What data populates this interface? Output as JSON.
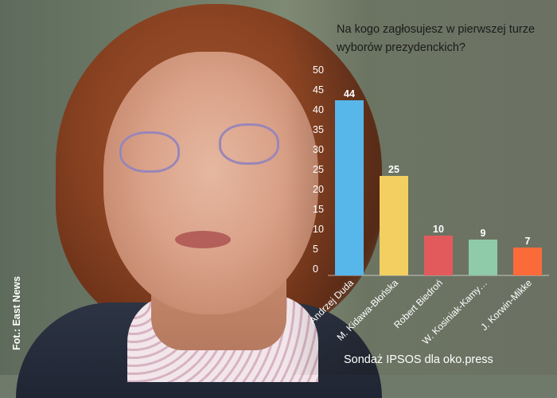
{
  "chart_data": {
    "type": "bar",
    "title": "Na kogo zagłosujesz w pierwszej turze wyborów prezydenckich?",
    "categories": [
      "Andrzej Duda",
      "M. Kidawa-Błońska",
      "Robert Biedroń",
      "W. Kosiniak-Kamy…",
      "J. Korwin-Mikke"
    ],
    "values": [
      44,
      25,
      10,
      9,
      7
    ],
    "colors": [
      "#57b7ea",
      "#f2cf60",
      "#e35a5c",
      "#8fcaa9",
      "#fb6b3a"
    ],
    "ylim": [
      0,
      50
    ],
    "yticks": [
      0,
      5,
      10,
      15,
      20,
      25,
      30,
      35,
      40,
      45,
      50
    ],
    "xlabel": "",
    "ylabel": "",
    "grid": false,
    "source": "Sondaż IPSOS dla oko.press"
  },
  "photo_credit": "Fot.: East News"
}
